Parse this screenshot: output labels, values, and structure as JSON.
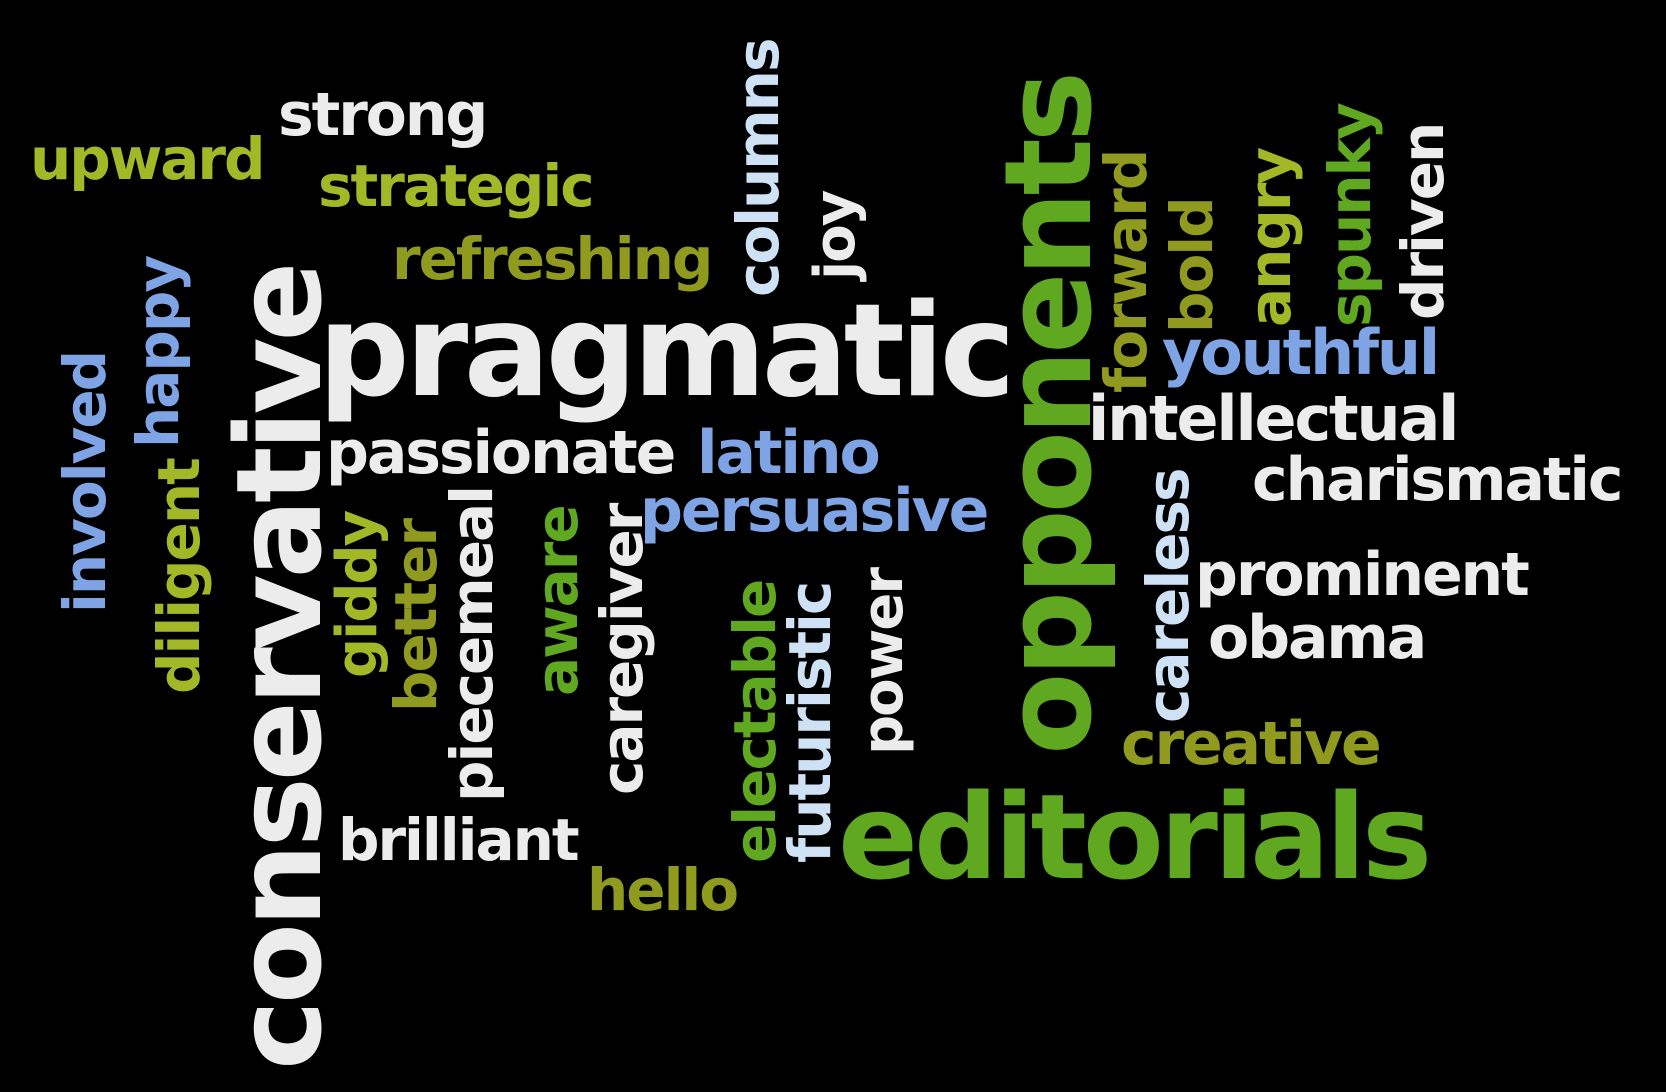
{
  "colors": {
    "background": "#000000",
    "white": "#ececec",
    "lime": "#a3b827",
    "olive": "#8f9a1e",
    "green": "#5fa81f",
    "blue": "#7fa4e6",
    "sky": "#cfe1f4"
  },
  "words": {
    "conservative": "conservative",
    "pragmatic": "pragmatic",
    "opponents": "opponents",
    "editorials": "editorials",
    "strong": "strong",
    "upward": "upward",
    "strategic": "strategic",
    "refreshing": "refreshing",
    "columns": "columns",
    "joy": "joy",
    "happy": "happy",
    "involved": "involved",
    "diligent": "diligent",
    "passionate": "passionate",
    "latino": "latino",
    "persuasive": "persuasive",
    "giddy": "giddy",
    "better": "better",
    "piecemeal": "piecemeal",
    "aware": "aware",
    "caregiver": "caregiver",
    "electable": "electable",
    "futuristic": "futuristic",
    "power": "power",
    "brilliant": "brilliant",
    "hello": "hello",
    "forward": "forward",
    "bold": "bold",
    "angry": "angry",
    "spunky": "spunky",
    "driven": "driven",
    "youthful": "youthful",
    "intellectual": "intellectual",
    "charismatic": "charismatic",
    "careless": "careless",
    "prominent": "prominent",
    "obama": "obama",
    "creative": "creative"
  }
}
